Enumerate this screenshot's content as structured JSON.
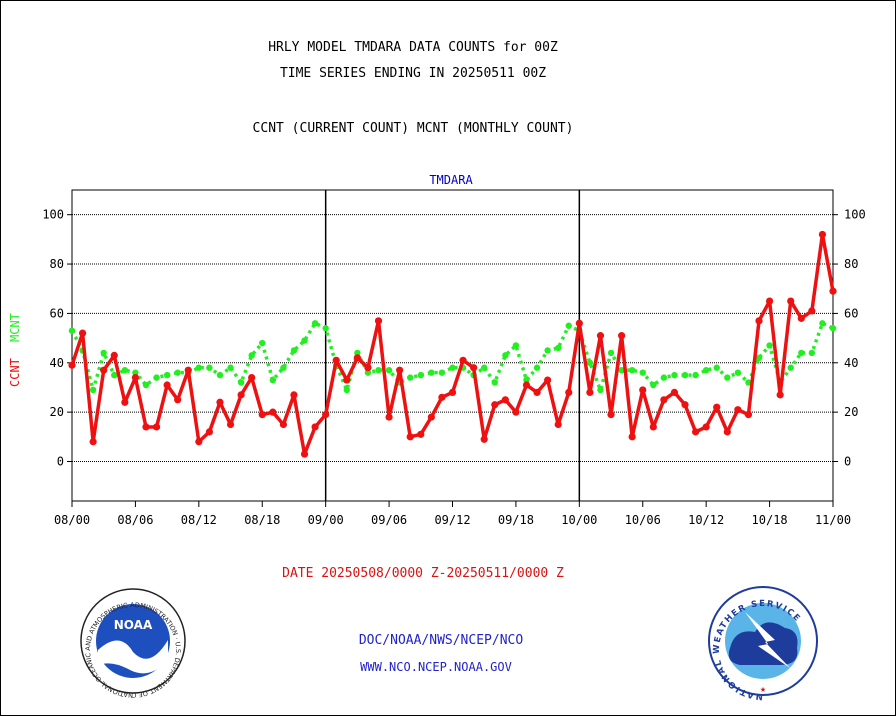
{
  "header": {
    "title_line1": "HRLY MODEL TMDARA DATA COUNTS for 00Z",
    "title_line2": "TIME SERIES ENDING IN 20250511 00Z",
    "subtitle": "CCNT (CURRENT COUNT) MCNT (MONTHLY COUNT)"
  },
  "footer": {
    "date_range": "DATE 20250508/0000 Z-20250511/0000 Z",
    "org": "DOC/NOAA/NWS/NCEP/NCO",
    "url": "WWW.NCO.NCEP.NOAA.GOV"
  },
  "logos": {
    "noaa_text": "NOAA",
    "noaa_ring": "NATIONAL OCEANIC AND ATMOSPHERIC ADMINISTRATION · U.S. DEPARTMENT OF COMMERCE ·",
    "nws_ring": "NATIONAL WEATHER SERVICE"
  },
  "colors": {
    "ccnt": "#ee1111",
    "mcnt": "#22ee22",
    "panel_label": "#0000cc",
    "footer_blue": "#2222cc",
    "date_red": "#dd1111"
  },
  "chart_data": {
    "type": "line",
    "panel_label": "TMDARA",
    "ylabel_ccnt": "CCNT",
    "ylabel_mcnt": "MCNT",
    "ylim": [
      -16,
      110
    ],
    "yticks": [
      0,
      20,
      40,
      60,
      80,
      100
    ],
    "xlim": [
      0,
      72
    ],
    "xtick_positions": [
      0,
      6,
      12,
      18,
      24,
      30,
      36,
      42,
      48,
      54,
      60,
      66,
      72
    ],
    "xtick_labels": [
      "08/00",
      "08/06",
      "08/12",
      "08/18",
      "09/00",
      "09/06",
      "09/12",
      "09/18",
      "10/00",
      "10/06",
      "10/12",
      "10/18",
      "11/00"
    ],
    "day_separators": [
      24,
      48
    ],
    "grid": true,
    "series": [
      {
        "name": "CCNT",
        "values": [
          39,
          52,
          8,
          37,
          43,
          24,
          34,
          14,
          14,
          31,
          25,
          37,
          8,
          12,
          24,
          15,
          27,
          34,
          19,
          20,
          15,
          27,
          3,
          14,
          19,
          41,
          33,
          42,
          38,
          57,
          18,
          37,
          10,
          11,
          18,
          26,
          28,
          41,
          38,
          9,
          23,
          25,
          20,
          31,
          28,
          33,
          15,
          28,
          56,
          28,
          51,
          19,
          51,
          10,
          29,
          14,
          25,
          28,
          23,
          12,
          14,
          22,
          12,
          21,
          19,
          57,
          65,
          27,
          65,
          58,
          61,
          92,
          69
        ]
      },
      {
        "name": "MCNT",
        "values": [
          53,
          45,
          29,
          44,
          35,
          37,
          36,
          31,
          34,
          35,
          36,
          36,
          38,
          38,
          35,
          38,
          32,
          43,
          48,
          33,
          38,
          45,
          49,
          56,
          54,
          39,
          29,
          44,
          36,
          37,
          37,
          32,
          34,
          35,
          36,
          36,
          38,
          38,
          35,
          38,
          32,
          43,
          47,
          33,
          38,
          45,
          46,
          55,
          53,
          40,
          29,
          44,
          37,
          37,
          36,
          31,
          34,
          35,
          35,
          35,
          37,
          38,
          34,
          36,
          32,
          42,
          47,
          32,
          38,
          44,
          44,
          56,
          54
        ]
      }
    ]
  }
}
